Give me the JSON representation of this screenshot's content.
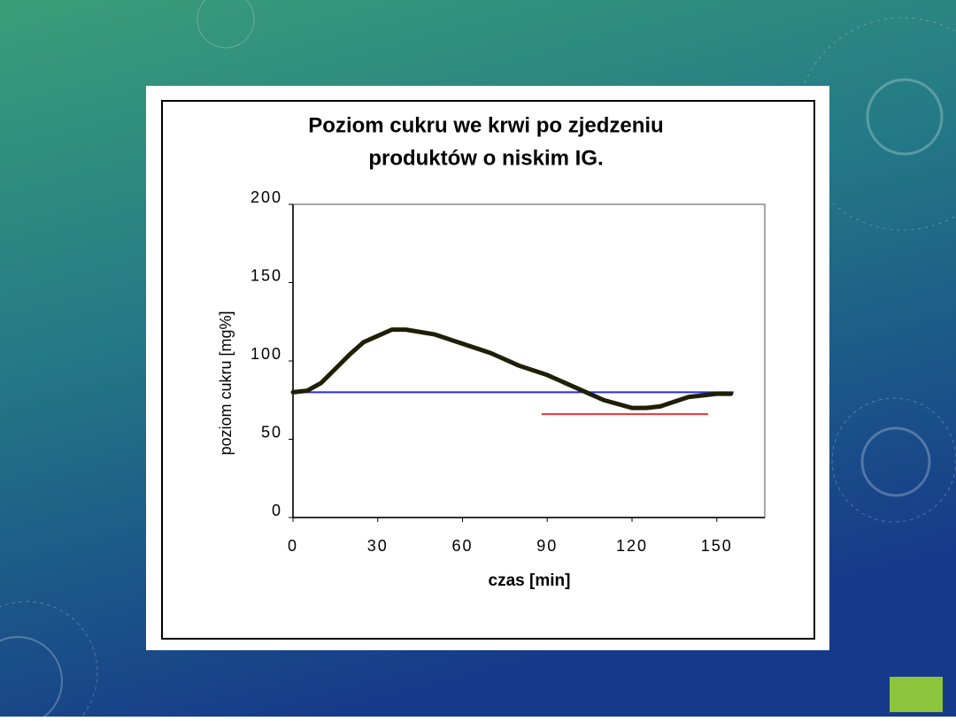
{
  "chart_data": {
    "type": "line",
    "title": [
      "Poziom cukru we krwi po zjedzeniu",
      "produktów o niskim IG."
    ],
    "x_label": "czas [min]",
    "y_label": "poziom cukru [mg%]",
    "xlim": [
      0,
      167
    ],
    "xticks": [
      0,
      30,
      60,
      90,
      120,
      150
    ],
    "ylim": [
      0,
      200
    ],
    "yticks": [
      0,
      50,
      100,
      150,
      200
    ],
    "series": [
      {
        "color": "#1f1f05",
        "x": [
          0,
          5,
          10,
          15,
          20,
          25,
          30,
          35,
          40,
          50,
          60,
          70,
          80,
          90,
          100,
          105,
          110,
          120,
          125,
          130,
          140,
          150,
          155
        ],
        "values": [
          80,
          81,
          86,
          95,
          104,
          112,
          116,
          120,
          120,
          117,
          111,
          105,
          97,
          91,
          83,
          79,
          75,
          70,
          70,
          71,
          77,
          79,
          79
        ]
      }
    ],
    "reference_lines": [
      {
        "color": "#2a2ae0",
        "y": 80,
        "x": [
          0,
          156
        ]
      },
      {
        "color": "#e03a3a",
        "y": 66,
        "x": [
          88,
          147
        ]
      }
    ]
  }
}
